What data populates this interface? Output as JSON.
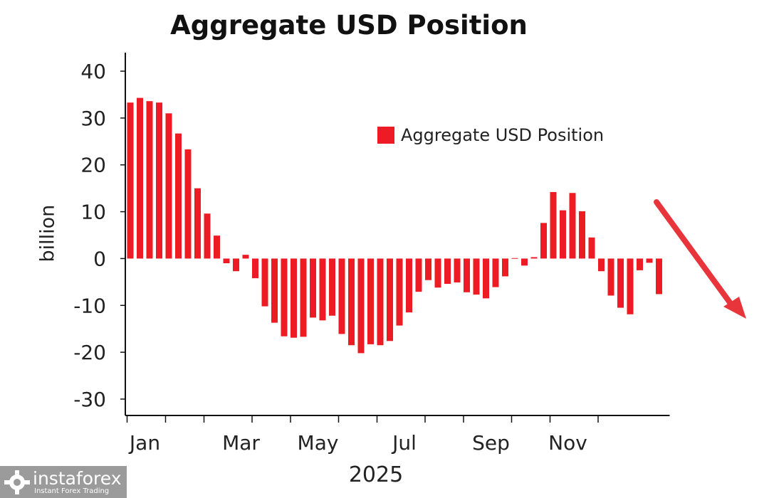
{
  "chart_data": {
    "type": "bar",
    "title": "Aggregate USD Position",
    "ylabel": "billion",
    "xlabel": "2025",
    "ylim": [
      -33.5,
      43.5
    ],
    "yticks": [
      40,
      30,
      20,
      10,
      0,
      -10,
      -20,
      -30
    ],
    "ytick_labels": [
      "40",
      "30",
      "20",
      "10",
      "0",
      "-10",
      "-20",
      "-30"
    ],
    "xtick_labels": [
      "Jan",
      "Mar",
      "May",
      "Jul",
      "Sep",
      "Nov"
    ],
    "xtick_label_index": [
      0,
      10,
      18,
      27,
      36,
      44
    ],
    "month_tick_index": [
      0,
      4,
      8,
      13,
      17,
      22,
      26,
      31,
      35,
      40,
      44,
      49
    ],
    "legend": {
      "label": "Aggregate USD Position",
      "position": "upper-right"
    },
    "grid": false,
    "series": [
      {
        "name": "Aggregate USD Position",
        "color": "#ed1c24",
        "values": [
          33.3,
          34.3,
          33.6,
          33.3,
          31.0,
          26.7,
          23.3,
          15.0,
          9.6,
          4.9,
          -1.0,
          -2.7,
          0.8,
          -4.2,
          -10.2,
          -13.7,
          -16.6,
          -16.9,
          -16.7,
          -12.6,
          -13.2,
          -12.2,
          -16.1,
          -18.5,
          -20.2,
          -18.3,
          -18.5,
          -17.6,
          -14.3,
          -11.5,
          -7.1,
          -4.6,
          -6.2,
          -5.4,
          -5.1,
          -7.2,
          -7.7,
          -8.5,
          -6.1,
          -3.8,
          0.1,
          -1.5,
          0.3,
          7.6,
          14.2,
          10.3,
          14.0,
          10.1,
          4.5,
          -2.7,
          -7.9,
          -10.5,
          -11.9,
          -2.5,
          -0.9,
          -7.6
        ]
      }
    ]
  },
  "watermark": {
    "name": "instaforex",
    "tagline": "Instant Forex Trading"
  },
  "annotation": {
    "arrow_color": "#e8353c",
    "direction": "down"
  }
}
